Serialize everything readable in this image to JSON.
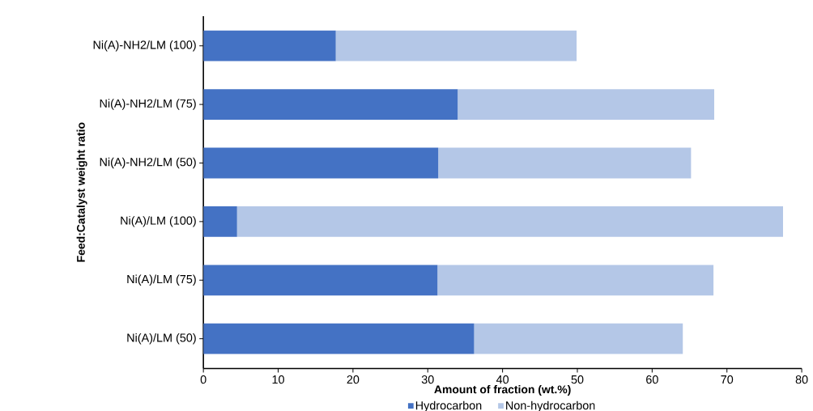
{
  "chart_data": {
    "type": "bar",
    "orientation": "horizontal",
    "stacked": true,
    "xlabel": "Amount of fraction (wt.%)",
    "ylabel": "Feed:Catalyst weight ratio",
    "categories": [
      "Ni(A)-NH2/LM (100)",
      "Ni(A)-NH2/LM (75)",
      "Ni(A)-NH2/LM (50)",
      "Ni(A)/LM (100)",
      "Ni(A)/LM (75)",
      "Ni(A)/LM (50)"
    ],
    "series": [
      {
        "name": "Hydrocarbon",
        "color": "#4472c4",
        "values": [
          17.7,
          34.0,
          31.4,
          4.5,
          31.3,
          36.2
        ]
      },
      {
        "name": "Non-hydrocarbon",
        "color": "#b4c7e7",
        "values": [
          32.2,
          34.3,
          33.8,
          73.0,
          36.9,
          27.9
        ]
      }
    ],
    "xlim": [
      0,
      80
    ],
    "xticks": [
      0,
      10,
      20,
      30,
      40,
      50,
      60,
      70,
      80
    ],
    "grid": false,
    "legend": "bottom"
  }
}
